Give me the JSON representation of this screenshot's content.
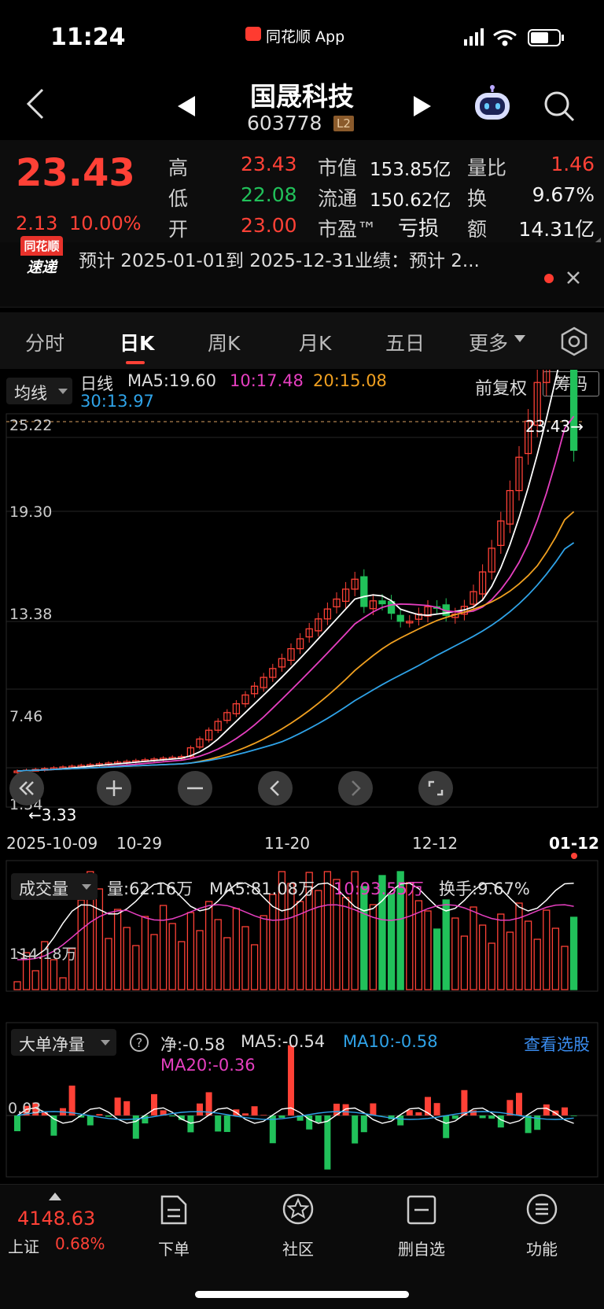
{
  "status": {
    "time": "11:24",
    "app": "同花顺 App"
  },
  "header": {
    "name": "国晟科技",
    "code": "603778",
    "badge": "L2"
  },
  "quote": {
    "price": "23.43",
    "change": "2.13",
    "pct": "10.00%",
    "high_label": "高",
    "high": "23.43",
    "low_label": "低",
    "low": "22.08",
    "open_label": "开",
    "open": "23.00",
    "mktcap_label": "市值",
    "mktcap": "153.85亿",
    "float_label": "流通",
    "float": "150.62亿",
    "pe_label": "市盈™",
    "pe": "亏损",
    "volratio_label": "量比",
    "volratio": "1.46",
    "turnover_label": "换",
    "turnover": "9.67%",
    "amount_label": "额",
    "amount": "14.31亿"
  },
  "news": {
    "badge1": "同花顺",
    "badge2": "速递",
    "text": "预计 2025-01-01到 2025-12-31业绩：预计 2..."
  },
  "tabs": [
    "分时",
    "日K",
    "周K",
    "月K",
    "五日",
    "更多"
  ],
  "ma_bar": {
    "selector": "均线",
    "type": "日线",
    "ma5": "MA5:19.60",
    "ma10": "10:17.48",
    "ma20": "20:15.08",
    "ma30": "30:13.97",
    "adjust": "前复权",
    "chips": "筹码"
  },
  "price_axis": [
    "25.22",
    "19.30",
    "13.38",
    "7.46",
    "1.54"
  ],
  "price_markers": {
    "current": "23.43→",
    "low": "←3.33"
  },
  "date_axis": [
    "2025-10-09",
    "10-29",
    "11-20",
    "12-12",
    "01-12"
  ],
  "volume": {
    "selector": "成交量",
    "vol": "量:62.16万",
    "ma5": "MA5:81.08万",
    "ma10": "10:93.55万",
    "turnover": "换手:9.67%",
    "axis": "114.18万"
  },
  "bigorder": {
    "selector": "大单净量",
    "net": "净:-0.58",
    "ma5": "MA5:-0.54",
    "ma10": "MA10:-0.58",
    "ma20": "MA20:-0.36",
    "link": "查看选股",
    "axis": "0.03"
  },
  "index": {
    "value": "4148.63",
    "name": "上证",
    "pct": "0.68%"
  },
  "nav": [
    "下单",
    "社区",
    "删自选",
    "功能"
  ],
  "colors": {
    "up": "#ff4136",
    "down": "#21c15a",
    "ma5": "#ffffff",
    "ma10": "#e63fc0",
    "ma20": "#f0a020",
    "ma30": "#2fa3e8"
  },
  "chart_data": {
    "type": "candlestick",
    "ylim": [
      1.54,
      25.22
    ],
    "dates": [
      "2025-10-09",
      "10-29",
      "11-20",
      "12-12",
      "01-12"
    ],
    "last_close": 23.43,
    "period_low": 3.33
  }
}
